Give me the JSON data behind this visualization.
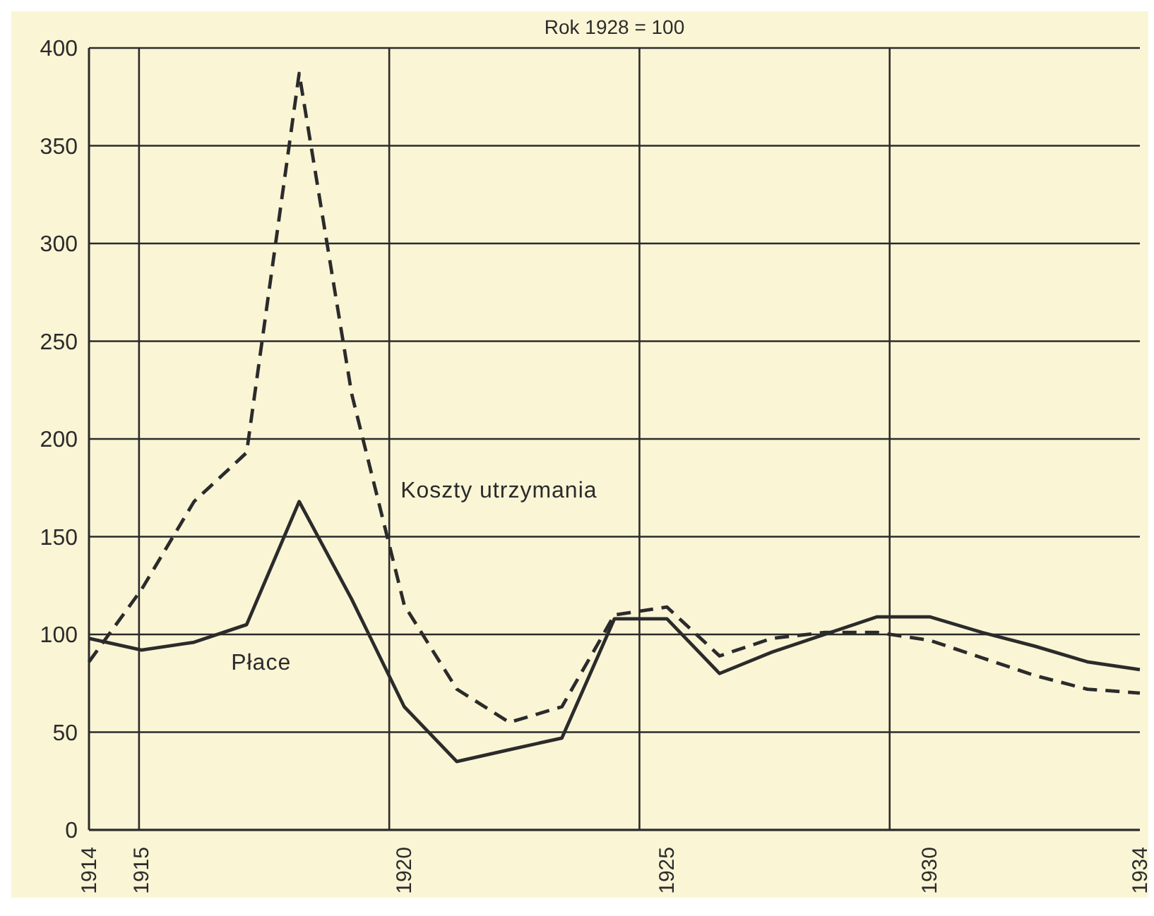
{
  "chart_data": {
    "type": "line",
    "subtitle": "Rok 1928 = 100",
    "categories": [
      "1914",
      "1915",
      null,
      null,
      null,
      null,
      "1920",
      null,
      null,
      null,
      null,
      "1925",
      null,
      null,
      null,
      null,
      "1930",
      null,
      null,
      null,
      "1934"
    ],
    "series": [
      {
        "name": "Koszty utrzymania",
        "color": "#2b2b2b",
        "line_style": "dashed",
        "values": [
          86,
          123,
          168,
          193,
          387,
          223,
          115,
          72,
          55,
          63,
          110,
          114,
          89,
          98,
          101,
          101,
          97,
          88,
          79,
          72,
          70
        ]
      },
      {
        "name": "Płace",
        "color": "#2b2b2b",
        "line_style": "solid",
        "values": [
          98,
          92,
          96,
          105,
          168,
          118,
          63,
          35,
          41,
          47,
          108,
          108,
          80,
          91,
          100,
          109,
          109,
          101,
          94,
          86,
          82
        ]
      }
    ],
    "ylim": [
      0,
      400
    ],
    "yticks": [
      0,
      50,
      100,
      150,
      200,
      250,
      300,
      350,
      400
    ],
    "grid": true,
    "legend": false,
    "marker": "none"
  }
}
